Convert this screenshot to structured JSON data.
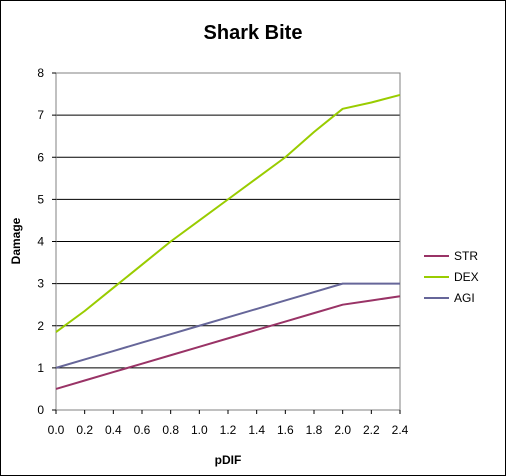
{
  "chart_data": {
    "type": "line",
    "title": "Shark Bite",
    "xlabel": "pDIF",
    "ylabel": "Damage",
    "xlim": [
      0,
      2.4
    ],
    "ylim": [
      0,
      8
    ],
    "x_ticks": [
      "0.0",
      "0.2",
      "0.4",
      "0.6",
      "0.8",
      "1.0",
      "1.2",
      "1.4",
      "1.6",
      "1.8",
      "2.0",
      "2.2",
      "2.4"
    ],
    "y_ticks": [
      "0",
      "1",
      "2",
      "3",
      "4",
      "5",
      "6",
      "7",
      "8"
    ],
    "grid": "horizontal",
    "legend_position": "right",
    "x": [
      0.0,
      0.2,
      0.4,
      0.6,
      0.8,
      1.0,
      1.2,
      1.4,
      1.6,
      1.8,
      2.0,
      2.2,
      2.4
    ],
    "series": [
      {
        "name": "STR",
        "color": "#993366",
        "values": [
          0.5,
          0.7,
          0.9,
          1.1,
          1.3,
          1.5,
          1.7,
          1.9,
          2.1,
          2.3,
          2.5,
          2.6,
          2.7
        ]
      },
      {
        "name": "DEX",
        "color": "#99cc00",
        "values": [
          1.85,
          2.35,
          2.9,
          3.45,
          4.0,
          4.5,
          5.0,
          5.5,
          6.0,
          6.6,
          7.15,
          7.3,
          7.48
        ]
      },
      {
        "name": "AGI",
        "color": "#666699",
        "values": [
          1.0,
          1.2,
          1.4,
          1.6,
          1.8,
          2.0,
          2.2,
          2.4,
          2.6,
          2.8,
          3.0,
          3.0,
          3.0
        ]
      }
    ]
  }
}
